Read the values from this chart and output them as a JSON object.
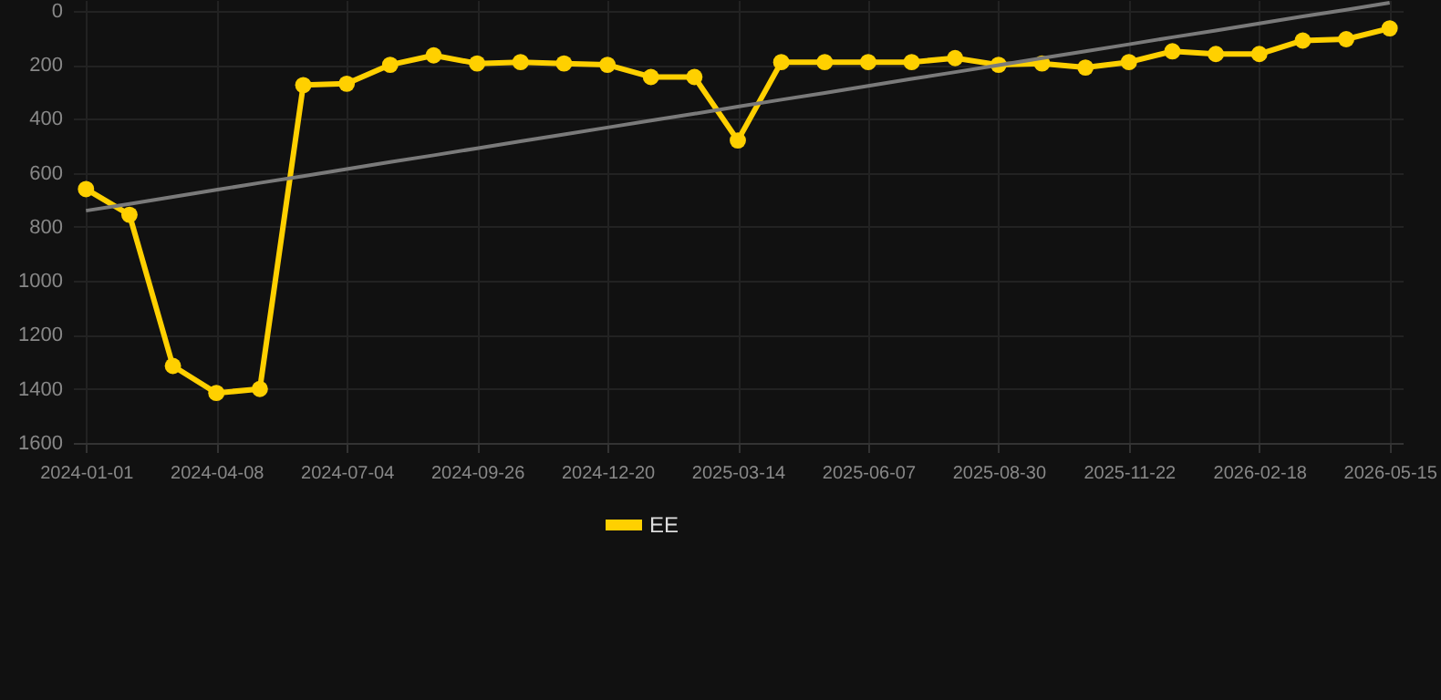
{
  "chart_data": {
    "type": "line",
    "categories": [
      "2024-01-01",
      null,
      null,
      "2024-04-08",
      null,
      null,
      "2024-07-04",
      null,
      null,
      "2024-09-26",
      null,
      null,
      "2024-12-20",
      null,
      null,
      "2025-03-14",
      null,
      null,
      "2025-06-07",
      null,
      null,
      "2025-08-30",
      null,
      null,
      "2025-11-22",
      null,
      null,
      "2026-02-18",
      null,
      null,
      "2026-05-15"
    ],
    "series": [
      {
        "name": "EE",
        "color": "#ffd000",
        "marker": "circle",
        "values": [
          660,
          755,
          1315,
          1415,
          1400,
          275,
          270,
          200,
          165,
          195,
          190,
          195,
          200,
          245,
          245,
          480,
          190,
          190,
          190,
          190,
          175,
          200,
          195,
          210,
          190,
          150,
          160,
          160,
          110,
          105,
          65
        ]
      },
      {
        "type": "line",
        "color": "#7a7a7a",
        "marker": "none",
        "values": [
          740,
          715,
          689,
          663,
          637,
          612,
          586,
          560,
          535,
          509,
          483,
          458,
          432,
          406,
          381,
          355,
          329,
          304,
          278,
          252,
          227,
          201,
          175,
          150,
          124,
          98,
          73,
          47,
          21,
          -4,
          -30
        ]
      }
    ],
    "ylim": [
      1600,
      -40
    ],
    "yticks": [
      0,
      200,
      400,
      600,
      800,
      1000,
      1200,
      1400,
      1600
    ],
    "grid": true,
    "legend": "bottom",
    "line_style": "solid"
  }
}
